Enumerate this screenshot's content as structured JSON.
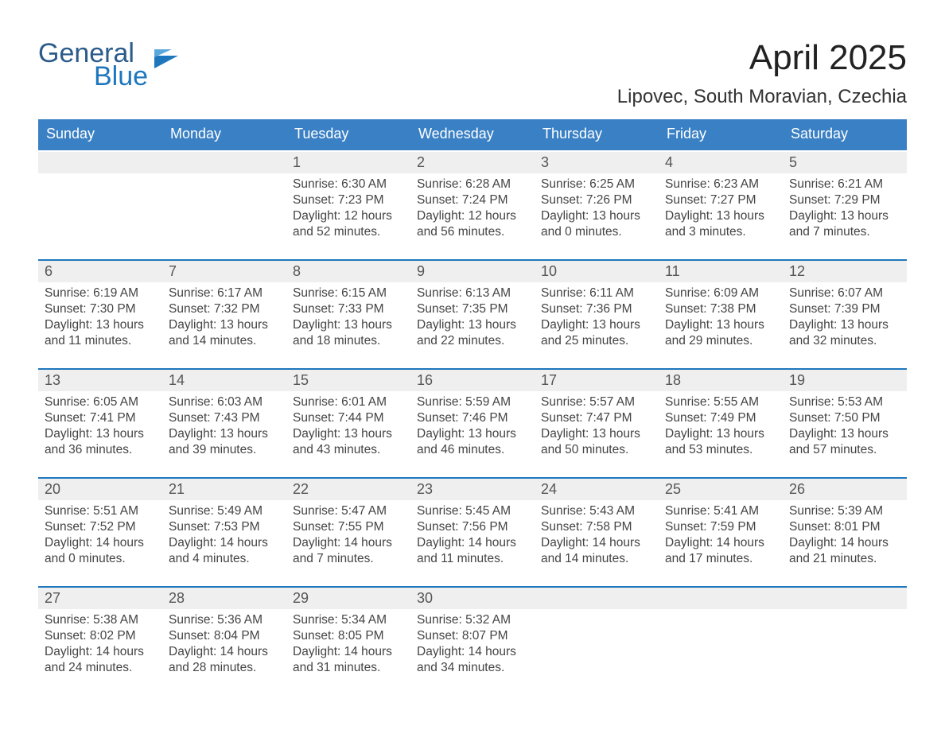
{
  "colors": {
    "header_blue": "#3a80c4",
    "accent_blue": "#1e77bd",
    "daynum_bg": "#efefef",
    "text_dark": "#333333",
    "background": "#ffffff"
  },
  "logo": {
    "line1": "General",
    "line2": "Blue"
  },
  "title": "April 2025",
  "location": "Lipovec, South Moravian, Czechia",
  "days_of_week": [
    "Sunday",
    "Monday",
    "Tuesday",
    "Wednesday",
    "Thursday",
    "Friday",
    "Saturday"
  ],
  "labels": {
    "sunrise": "Sunrise:",
    "sunset": "Sunset:",
    "daylight": "Daylight:"
  },
  "weeks": [
    [
      null,
      null,
      {
        "n": "1",
        "sunrise": "6:30 AM",
        "sunset": "7:23 PM",
        "daylight": "12 hours and 52 minutes."
      },
      {
        "n": "2",
        "sunrise": "6:28 AM",
        "sunset": "7:24 PM",
        "daylight": "12 hours and 56 minutes."
      },
      {
        "n": "3",
        "sunrise": "6:25 AM",
        "sunset": "7:26 PM",
        "daylight": "13 hours and 0 minutes."
      },
      {
        "n": "4",
        "sunrise": "6:23 AM",
        "sunset": "7:27 PM",
        "daylight": "13 hours and 3 minutes."
      },
      {
        "n": "5",
        "sunrise": "6:21 AM",
        "sunset": "7:29 PM",
        "daylight": "13 hours and 7 minutes."
      }
    ],
    [
      {
        "n": "6",
        "sunrise": "6:19 AM",
        "sunset": "7:30 PM",
        "daylight": "13 hours and 11 minutes."
      },
      {
        "n": "7",
        "sunrise": "6:17 AM",
        "sunset": "7:32 PM",
        "daylight": "13 hours and 14 minutes."
      },
      {
        "n": "8",
        "sunrise": "6:15 AM",
        "sunset": "7:33 PM",
        "daylight": "13 hours and 18 minutes."
      },
      {
        "n": "9",
        "sunrise": "6:13 AM",
        "sunset": "7:35 PM",
        "daylight": "13 hours and 22 minutes."
      },
      {
        "n": "10",
        "sunrise": "6:11 AM",
        "sunset": "7:36 PM",
        "daylight": "13 hours and 25 minutes."
      },
      {
        "n": "11",
        "sunrise": "6:09 AM",
        "sunset": "7:38 PM",
        "daylight": "13 hours and 29 minutes."
      },
      {
        "n": "12",
        "sunrise": "6:07 AM",
        "sunset": "7:39 PM",
        "daylight": "13 hours and 32 minutes."
      }
    ],
    [
      {
        "n": "13",
        "sunrise": "6:05 AM",
        "sunset": "7:41 PM",
        "daylight": "13 hours and 36 minutes."
      },
      {
        "n": "14",
        "sunrise": "6:03 AM",
        "sunset": "7:43 PM",
        "daylight": "13 hours and 39 minutes."
      },
      {
        "n": "15",
        "sunrise": "6:01 AM",
        "sunset": "7:44 PM",
        "daylight": "13 hours and 43 minutes."
      },
      {
        "n": "16",
        "sunrise": "5:59 AM",
        "sunset": "7:46 PM",
        "daylight": "13 hours and 46 minutes."
      },
      {
        "n": "17",
        "sunrise": "5:57 AM",
        "sunset": "7:47 PM",
        "daylight": "13 hours and 50 minutes."
      },
      {
        "n": "18",
        "sunrise": "5:55 AM",
        "sunset": "7:49 PM",
        "daylight": "13 hours and 53 minutes."
      },
      {
        "n": "19",
        "sunrise": "5:53 AM",
        "sunset": "7:50 PM",
        "daylight": "13 hours and 57 minutes."
      }
    ],
    [
      {
        "n": "20",
        "sunrise": "5:51 AM",
        "sunset": "7:52 PM",
        "daylight": "14 hours and 0 minutes."
      },
      {
        "n": "21",
        "sunrise": "5:49 AM",
        "sunset": "7:53 PM",
        "daylight": "14 hours and 4 minutes."
      },
      {
        "n": "22",
        "sunrise": "5:47 AM",
        "sunset": "7:55 PM",
        "daylight": "14 hours and 7 minutes."
      },
      {
        "n": "23",
        "sunrise": "5:45 AM",
        "sunset": "7:56 PM",
        "daylight": "14 hours and 11 minutes."
      },
      {
        "n": "24",
        "sunrise": "5:43 AM",
        "sunset": "7:58 PM",
        "daylight": "14 hours and 14 minutes."
      },
      {
        "n": "25",
        "sunrise": "5:41 AM",
        "sunset": "7:59 PM",
        "daylight": "14 hours and 17 minutes."
      },
      {
        "n": "26",
        "sunrise": "5:39 AM",
        "sunset": "8:01 PM",
        "daylight": "14 hours and 21 minutes."
      }
    ],
    [
      {
        "n": "27",
        "sunrise": "5:38 AM",
        "sunset": "8:02 PM",
        "daylight": "14 hours and 24 minutes."
      },
      {
        "n": "28",
        "sunrise": "5:36 AM",
        "sunset": "8:04 PM",
        "daylight": "14 hours and 28 minutes."
      },
      {
        "n": "29",
        "sunrise": "5:34 AM",
        "sunset": "8:05 PM",
        "daylight": "14 hours and 31 minutes."
      },
      {
        "n": "30",
        "sunrise": "5:32 AM",
        "sunset": "8:07 PM",
        "daylight": "14 hours and 34 minutes."
      },
      null,
      null,
      null
    ]
  ]
}
